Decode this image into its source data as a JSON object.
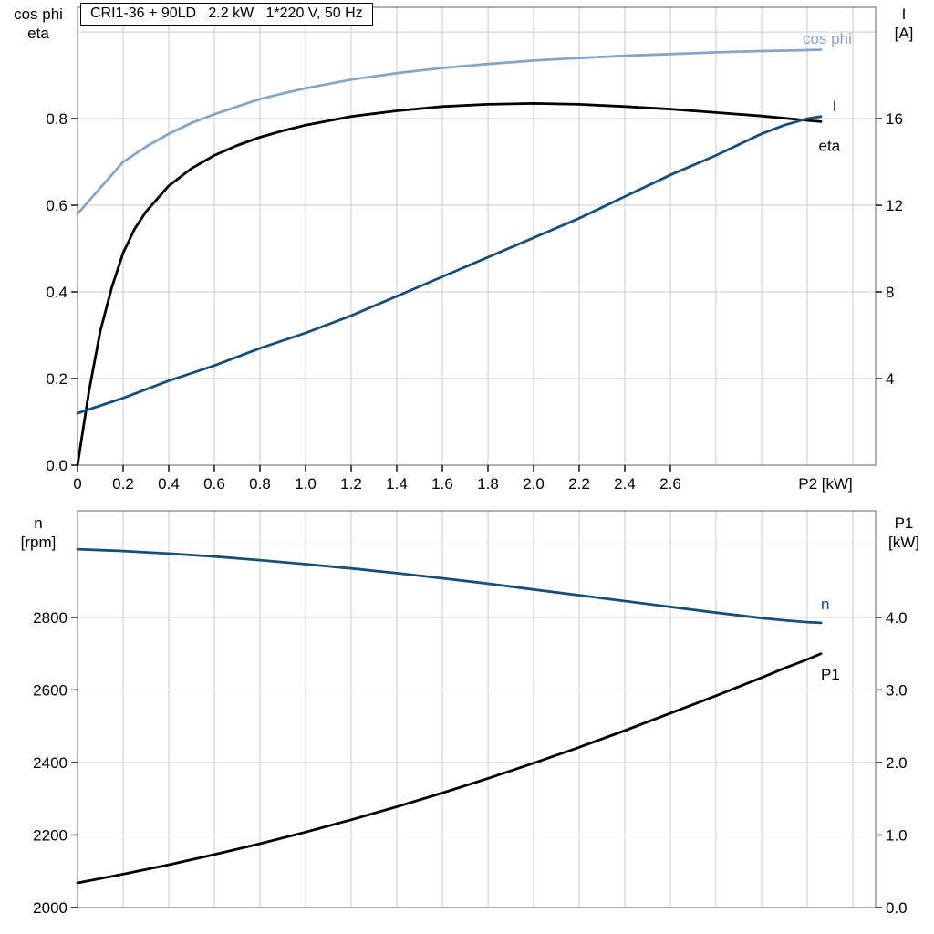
{
  "page": {
    "background": "#ffffff"
  },
  "colors": {
    "light_blue": "#87a5c4",
    "dark_blue": "#174f7a",
    "black": "#000000",
    "grid": "#c9c9c9",
    "frame": "#8f8f8f",
    "tick": "#000000",
    "text": "#000000"
  },
  "chart_data": [
    {
      "type": "line",
      "title": "CRI1-36 + 90LD   2.2 kW   1*220 V, 50 Hz",
      "x_axis": {
        "min": 0,
        "max": 3.5,
        "grid_step": 0.2,
        "label": "P2 [kW]",
        "label_x": 3.28,
        "tick_values": [
          0,
          0.2,
          0.4,
          0.6,
          0.8,
          1.0,
          1.2,
          1.4,
          1.6,
          1.8,
          2.0,
          2.2,
          2.4,
          2.6
        ],
        "tick_labels": [
          "0",
          "0.2",
          "0.4",
          "0.6",
          "0.8",
          "1.0",
          "1.2",
          "1.4",
          "1.6",
          "1.8",
          "2.0",
          "2.2",
          "2.4",
          "2.6"
        ]
      },
      "left_axis": {
        "title_lines": [
          "cos phi",
          "eta"
        ],
        "min": 0,
        "max": 1.057,
        "tick_values": [
          0,
          0.2,
          0.4,
          0.6,
          0.8
        ],
        "tick_labels": [
          "0.0",
          "0.2",
          "0.4",
          "0.6",
          "0.8"
        ],
        "grid_values": [
          0.2,
          0.4,
          0.6,
          0.8,
          1.0
        ]
      },
      "right_axis": {
        "title_lines": [
          "I",
          "[A]"
        ],
        "min": 0,
        "max": 21.14,
        "tick_values": [
          4,
          8,
          12,
          16
        ],
        "tick_labels": [
          "4",
          "8",
          "12",
          "16"
        ]
      },
      "series": [
        {
          "name": "cos phi",
          "axis": "left",
          "color_key": "light_blue",
          "label": "cos phi",
          "label_at": [
            3.18,
            0.985
          ],
          "points": [
            [
              0,
              0.58
            ],
            [
              0.1,
              0.64
            ],
            [
              0.2,
              0.7
            ],
            [
              0.3,
              0.735
            ],
            [
              0.4,
              0.765
            ],
            [
              0.5,
              0.79
            ],
            [
              0.6,
              0.81
            ],
            [
              0.7,
              0.828
            ],
            [
              0.8,
              0.845
            ],
            [
              0.9,
              0.858
            ],
            [
              1.0,
              0.87
            ],
            [
              1.2,
              0.89
            ],
            [
              1.4,
              0.905
            ],
            [
              1.6,
              0.917
            ],
            [
              1.8,
              0.926
            ],
            [
              2.0,
              0.934
            ],
            [
              2.2,
              0.94
            ],
            [
              2.4,
              0.945
            ],
            [
              2.6,
              0.949
            ],
            [
              2.8,
              0.953
            ],
            [
              3.0,
              0.956
            ],
            [
              3.2,
              0.958
            ],
            [
              3.26,
              0.959
            ]
          ]
        },
        {
          "name": "eta",
          "axis": "left",
          "color_key": "black",
          "label": "eta",
          "label_at": [
            3.25,
            0.738
          ],
          "points": [
            [
              0,
              0
            ],
            [
              0.05,
              0.17
            ],
            [
              0.1,
              0.31
            ],
            [
              0.15,
              0.41
            ],
            [
              0.2,
              0.49
            ],
            [
              0.25,
              0.545
            ],
            [
              0.3,
              0.585
            ],
            [
              0.4,
              0.645
            ],
            [
              0.5,
              0.685
            ],
            [
              0.6,
              0.715
            ],
            [
              0.7,
              0.738
            ],
            [
              0.8,
              0.757
            ],
            [
              0.9,
              0.772
            ],
            [
              1.0,
              0.785
            ],
            [
              1.2,
              0.805
            ],
            [
              1.4,
              0.818
            ],
            [
              1.6,
              0.828
            ],
            [
              1.8,
              0.833
            ],
            [
              2.0,
              0.835
            ],
            [
              2.2,
              0.833
            ],
            [
              2.4,
              0.828
            ],
            [
              2.6,
              0.822
            ],
            [
              2.8,
              0.814
            ],
            [
              3.0,
              0.806
            ],
            [
              3.2,
              0.796
            ],
            [
              3.26,
              0.793
            ]
          ]
        },
        {
          "name": "I",
          "axis": "right",
          "color_key": "dark_blue",
          "label": "I",
          "label_at": [
            3.31,
            16.6
          ],
          "points": [
            [
              0,
              2.4
            ],
            [
              0.2,
              3.1
            ],
            [
              0.4,
              3.9
            ],
            [
              0.6,
              4.6
            ],
            [
              0.8,
              5.4
            ],
            [
              1.0,
              6.1
            ],
            [
              1.2,
              6.9
            ],
            [
              1.4,
              7.8
            ],
            [
              1.6,
              8.7
            ],
            [
              1.8,
              9.6
            ],
            [
              2.0,
              10.5
            ],
            [
              2.2,
              11.4
            ],
            [
              2.4,
              12.4
            ],
            [
              2.6,
              13.4
            ],
            [
              2.8,
              14.3
            ],
            [
              3.0,
              15.3
            ],
            [
              3.1,
              15.7
            ],
            [
              3.2,
              16.0
            ],
            [
              3.26,
              16.1
            ]
          ]
        }
      ]
    },
    {
      "type": "line",
      "title": "",
      "x_axis": {
        "min": 0,
        "max": 3.5,
        "grid_step": 0.2,
        "label": "",
        "label_x": 3.28,
        "tick_values": [],
        "tick_labels": []
      },
      "left_axis": {
        "title_lines": [
          "n",
          "[rpm]"
        ],
        "min": 2000,
        "max": 3094,
        "tick_values": [
          2000,
          2200,
          2400,
          2600,
          2800
        ],
        "tick_labels": [
          "2000",
          "2200",
          "2400",
          "2600",
          "2800"
        ],
        "grid_values": [
          2200,
          2400,
          2600,
          2800,
          3000
        ]
      },
      "right_axis": {
        "title_lines": [
          "P1",
          "[kW]"
        ],
        "min": 0,
        "max": 5.47,
        "tick_values": [
          0,
          1,
          2,
          3,
          4
        ],
        "tick_labels": [
          "0.0",
          "1.0",
          "2.0",
          "3.0",
          "4.0"
        ]
      },
      "series": [
        {
          "name": "n",
          "axis": "left",
          "color_key": "dark_blue",
          "label": "n",
          "label_at": [
            3.26,
            2838
          ],
          "points": [
            [
              0,
              2988
            ],
            [
              0.2,
              2983
            ],
            [
              0.4,
              2976
            ],
            [
              0.6,
              2968
            ],
            [
              0.8,
              2958
            ],
            [
              1.0,
              2947
            ],
            [
              1.2,
              2935
            ],
            [
              1.4,
              2922
            ],
            [
              1.6,
              2908
            ],
            [
              1.8,
              2893
            ],
            [
              2.0,
              2877
            ],
            [
              2.2,
              2861
            ],
            [
              2.4,
              2845
            ],
            [
              2.6,
              2829
            ],
            [
              2.8,
              2813
            ],
            [
              3.0,
              2798
            ],
            [
              3.1,
              2792
            ],
            [
              3.2,
              2787
            ],
            [
              3.26,
              2785
            ]
          ]
        },
        {
          "name": "P1",
          "axis": "right",
          "color_key": "black",
          "label": "P1",
          "label_at": [
            3.26,
            3.22
          ],
          "points": [
            [
              0,
              0.34
            ],
            [
              0.2,
              0.46
            ],
            [
              0.4,
              0.59
            ],
            [
              0.6,
              0.73
            ],
            [
              0.8,
              0.88
            ],
            [
              1.0,
              1.04
            ],
            [
              1.2,
              1.21
            ],
            [
              1.4,
              1.39
            ],
            [
              1.6,
              1.58
            ],
            [
              1.8,
              1.78
            ],
            [
              2.0,
              1.99
            ],
            [
              2.2,
              2.21
            ],
            [
              2.4,
              2.44
            ],
            [
              2.6,
              2.68
            ],
            [
              2.8,
              2.92
            ],
            [
              3.0,
              3.17
            ],
            [
              3.1,
              3.3
            ],
            [
              3.2,
              3.42
            ],
            [
              3.26,
              3.5
            ]
          ]
        }
      ]
    }
  ]
}
